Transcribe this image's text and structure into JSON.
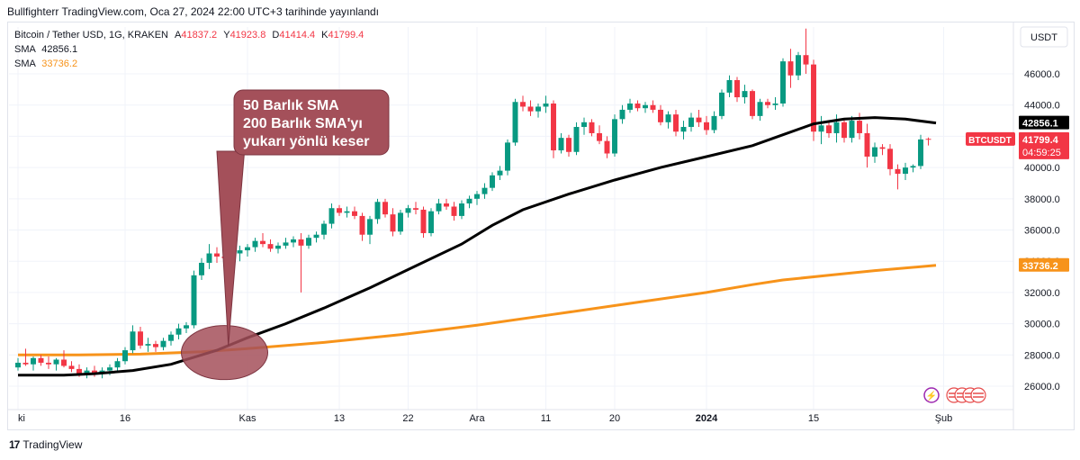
{
  "header": {
    "published": "Bullfighterr TradingView.com, Oca 27, 2024 22:00 UTC+3 tarihinde yayınlandı"
  },
  "legend": {
    "symbol": "Bitcoin / Tether USD, 1G, KRAKEN",
    "o_label": "A",
    "o_value": "41837.2",
    "h_label": "Y",
    "h_value": "41923.8",
    "l_label": "D",
    "l_value": "41414.4",
    "c_label": "K",
    "c_value": "41799.4",
    "sma1_label": "SMA",
    "sma1_value": "42856.1",
    "sma2_label": "SMA",
    "sma2_value": "33736.2"
  },
  "annotation": {
    "line1": "50 Barlık SMA",
    "line2": "200 Barlık SMA'yı",
    "line3": "yukarı yönlü keser"
  },
  "axis_badges": {
    "currency": "USDT",
    "sma50": "42856.1",
    "price": "41799.4",
    "countdown": "04:59:25",
    "ticker": "BTCUSDT",
    "sma200": "33736.2"
  },
  "footer": {
    "brand": "TradingView"
  },
  "colors": {
    "up": "#089981",
    "down": "#f23645",
    "sma50": "#000000",
    "sma200": "#f7931a",
    "bubble": "#a4505a",
    "grid": "#f0f3fa"
  },
  "chart_data": {
    "type": "candlestick",
    "title": "Bitcoin / Tether USD, 1G, KRAKEN",
    "ylim": [
      24500,
      49000
    ],
    "y_ticks": [
      26000,
      28000,
      30000,
      32000,
      34000,
      36000,
      38000,
      40000,
      42000,
      44000,
      46000
    ],
    "y_tick_labels": [
      "26000.0",
      "28000.0",
      "30000.0",
      "32000.0",
      "34000.0",
      "36000.0",
      "38000.0",
      "40000.0",
      "42000.0",
      "44000.0",
      "46000.0"
    ],
    "x_index_range": [
      0,
      120
    ],
    "x_ticks": [
      {
        "label": "ki",
        "index": 0
      },
      {
        "label": "16",
        "index": 14
      },
      {
        "label": "Kas",
        "index": 30
      },
      {
        "label": "13",
        "index": 42
      },
      {
        "label": "22",
        "index": 51
      },
      {
        "label": "Ara",
        "index": 60
      },
      {
        "label": "11",
        "index": 69
      },
      {
        "label": "20",
        "index": 78
      },
      {
        "label": "2024",
        "index": 90
      },
      {
        "label": "15",
        "index": 104
      },
      {
        "label": "Şub",
        "index": 121
      }
    ],
    "candles": [
      [
        27200,
        27800,
        27000,
        27500
      ],
      [
        27500,
        28400,
        27300,
        27400
      ],
      [
        27400,
        27900,
        27000,
        27800
      ],
      [
        27800,
        28000,
        27300,
        27500
      ],
      [
        27500,
        27900,
        27100,
        27400
      ],
      [
        27400,
        27800,
        27000,
        27700
      ],
      [
        27700,
        28300,
        27200,
        27300
      ],
      [
        27300,
        27600,
        26900,
        27100
      ],
      [
        27100,
        27400,
        26600,
        26800
      ],
      [
        26800,
        27200,
        26500,
        27000
      ],
      [
        27000,
        27300,
        26600,
        26800
      ],
      [
        26800,
        27200,
        26500,
        27000
      ],
      [
        27000,
        27400,
        26700,
        27200
      ],
      [
        27200,
        27800,
        27000,
        27600
      ],
      [
        27600,
        28500,
        27400,
        28300
      ],
      [
        28300,
        29900,
        28100,
        29500
      ],
      [
        29500,
        29800,
        28400,
        28600
      ],
      [
        28600,
        29100,
        28200,
        28700
      ],
      [
        28700,
        28900,
        28200,
        28500
      ],
      [
        28500,
        29100,
        28300,
        28900
      ],
      [
        28900,
        29500,
        28600,
        29300
      ],
      [
        29300,
        30000,
        29000,
        29700
      ],
      [
        29700,
        30100,
        29400,
        29900
      ],
      [
        29900,
        33400,
        29700,
        33100
      ],
      [
        33100,
        34200,
        32800,
        33900
      ],
      [
        33900,
        35100,
        33500,
        34500
      ],
      [
        34500,
        34900,
        33900,
        34300
      ],
      [
        34300,
        34900,
        33800,
        34200
      ],
      [
        34200,
        34600,
        33600,
        34500
      ],
      [
        34500,
        35000,
        34000,
        34700
      ],
      [
        34700,
        35100,
        34300,
        34900
      ],
      [
        34900,
        35500,
        34600,
        35300
      ],
      [
        35300,
        35800,
        34900,
        35100
      ],
      [
        35100,
        35400,
        34600,
        34800
      ],
      [
        34800,
        35200,
        34500,
        35000
      ],
      [
        35000,
        35500,
        34800,
        35200
      ],
      [
        35200,
        35600,
        34900,
        35400
      ],
      [
        35400,
        35800,
        32000,
        35000
      ],
      [
        35000,
        35700,
        34800,
        35500
      ],
      [
        35500,
        35900,
        35200,
        35700
      ],
      [
        35700,
        36600,
        35400,
        36400
      ],
      [
        36400,
        37700,
        36100,
        37400
      ],
      [
        37400,
        37600,
        36900,
        37100
      ],
      [
        37100,
        37500,
        36800,
        37200
      ],
      [
        37200,
        37500,
        36700,
        36900
      ],
      [
        36900,
        37100,
        35300,
        35700
      ],
      [
        35700,
        36900,
        35100,
        36700
      ],
      [
        36700,
        38000,
        36400,
        37800
      ],
      [
        37800,
        38000,
        36800,
        37000
      ],
      [
        37000,
        37400,
        35600,
        35900
      ],
      [
        35900,
        37300,
        35700,
        37100
      ],
      [
        37100,
        37600,
        36800,
        37400
      ],
      [
        37400,
        37800,
        37000,
        37300
      ],
      [
        37300,
        37500,
        35500,
        35800
      ],
      [
        35800,
        37400,
        35600,
        37200
      ],
      [
        37200,
        38000,
        37000,
        37700
      ],
      [
        37700,
        38000,
        37300,
        37500
      ],
      [
        37500,
        37800,
        36600,
        36900
      ],
      [
        36900,
        37900,
        36700,
        37700
      ],
      [
        37700,
        38200,
        37400,
        38000
      ],
      [
        38000,
        38500,
        37600,
        38300
      ],
      [
        38300,
        39000,
        38000,
        38700
      ],
      [
        38700,
        39700,
        38500,
        39500
      ],
      [
        39500,
        40100,
        39200,
        39800
      ],
      [
        39800,
        41800,
        39500,
        41600
      ],
      [
        41600,
        44400,
        41400,
        44200
      ],
      [
        44200,
        44600,
        43600,
        43900
      ],
      [
        43900,
        44300,
        43300,
        43600
      ],
      [
        43600,
        44100,
        43200,
        43900
      ],
      [
        43900,
        44600,
        43500,
        44100
      ],
      [
        44100,
        44300,
        40600,
        41100
      ],
      [
        41100,
        42200,
        40900,
        41900
      ],
      [
        41900,
        42100,
        40700,
        41000
      ],
      [
        41000,
        42900,
        40800,
        42600
      ],
      [
        42600,
        43200,
        42100,
        42900
      ],
      [
        42900,
        43100,
        42000,
        42200
      ],
      [
        42200,
        42700,
        41500,
        41700
      ],
      [
        41700,
        42000,
        40600,
        40900
      ],
      [
        40900,
        43400,
        40700,
        43100
      ],
      [
        43100,
        44000,
        42800,
        43700
      ],
      [
        43700,
        44400,
        43500,
        44100
      ],
      [
        44100,
        44300,
        43600,
        43800
      ],
      [
        43800,
        44200,
        43500,
        44000
      ],
      [
        44000,
        44300,
        43500,
        43700
      ],
      [
        43700,
        44000,
        42700,
        42900
      ],
      [
        42900,
        43600,
        42500,
        43400
      ],
      [
        43400,
        43700,
        42000,
        42300
      ],
      [
        42300,
        43000,
        41800,
        42600
      ],
      [
        42600,
        43500,
        42300,
        43200
      ],
      [
        43200,
        43700,
        42600,
        42900
      ],
      [
        42900,
        43300,
        42100,
        42400
      ],
      [
        42400,
        43600,
        42200,
        43300
      ],
      [
        43300,
        45000,
        43100,
        44800
      ],
      [
        44800,
        45900,
        44500,
        45600
      ],
      [
        45600,
        45800,
        44200,
        44500
      ],
      [
        44500,
        45300,
        44100,
        44900
      ],
      [
        44900,
        45000,
        43100,
        43300
      ],
      [
        43300,
        44400,
        43000,
        44200
      ],
      [
        44200,
        44400,
        43800,
        44000
      ],
      [
        44000,
        44500,
        43700,
        44100
      ],
      [
        44100,
        47000,
        43900,
        46800
      ],
      [
        46800,
        47600,
        45100,
        45900
      ],
      [
        45900,
        47400,
        45600,
        47200
      ],
      [
        47200,
        48900,
        46000,
        46600
      ],
      [
        46600,
        46900,
        41700,
        42300
      ],
      [
        42300,
        43300,
        41500,
        42700
      ],
      [
        42700,
        43000,
        41900,
        42200
      ],
      [
        42200,
        43400,
        41600,
        42900
      ],
      [
        42900,
        43100,
        41600,
        41900
      ],
      [
        41900,
        43300,
        41600,
        43000
      ]
    ],
    "candles_extra": [
      [
        43000,
        43500,
        41800,
        42200
      ],
      [
        42200,
        42800,
        40000,
        40700
      ],
      [
        40700,
        41600,
        40300,
        41300
      ],
      [
        41300,
        41500,
        40800,
        41200
      ],
      [
        41200,
        41500,
        39500,
        39900
      ],
      [
        39900,
        40200,
        38600,
        39600
      ],
      [
        39600,
        40300,
        39200,
        40000
      ],
      [
        40000,
        40200,
        39700,
        40100
      ],
      [
        40100,
        42100,
        39900,
        41800
      ],
      [
        41837.2,
        41923.8,
        41414.4,
        41799.4
      ]
    ],
    "sma50": [
      [
        0,
        26700
      ],
      [
        6,
        26700
      ],
      [
        10,
        26800
      ],
      [
        15,
        27000
      ],
      [
        20,
        27400
      ],
      [
        26,
        28300
      ],
      [
        30,
        29100
      ],
      [
        35,
        30000
      ],
      [
        40,
        31000
      ],
      [
        46,
        32300
      ],
      [
        52,
        33700
      ],
      [
        58,
        35100
      ],
      [
        62,
        36300
      ],
      [
        66,
        37300
      ],
      [
        72,
        38300
      ],
      [
        78,
        39200
      ],
      [
        84,
        40000
      ],
      [
        90,
        40700
      ],
      [
        96,
        41400
      ],
      [
        100,
        42100
      ],
      [
        104,
        42800
      ],
      [
        108,
        43100
      ],
      [
        112,
        43200
      ],
      [
        116,
        43100
      ],
      [
        120,
        42856.1
      ]
    ],
    "sma200": [
      [
        0,
        28000
      ],
      [
        8,
        28000
      ],
      [
        16,
        28050
      ],
      [
        24,
        28200
      ],
      [
        30,
        28400
      ],
      [
        40,
        28800
      ],
      [
        50,
        29300
      ],
      [
        60,
        29900
      ],
      [
        70,
        30600
      ],
      [
        80,
        31300
      ],
      [
        90,
        32000
      ],
      [
        96,
        32500
      ],
      [
        100,
        32800
      ],
      [
        106,
        33100
      ],
      [
        112,
        33400
      ],
      [
        120,
        33736.2
      ]
    ]
  }
}
